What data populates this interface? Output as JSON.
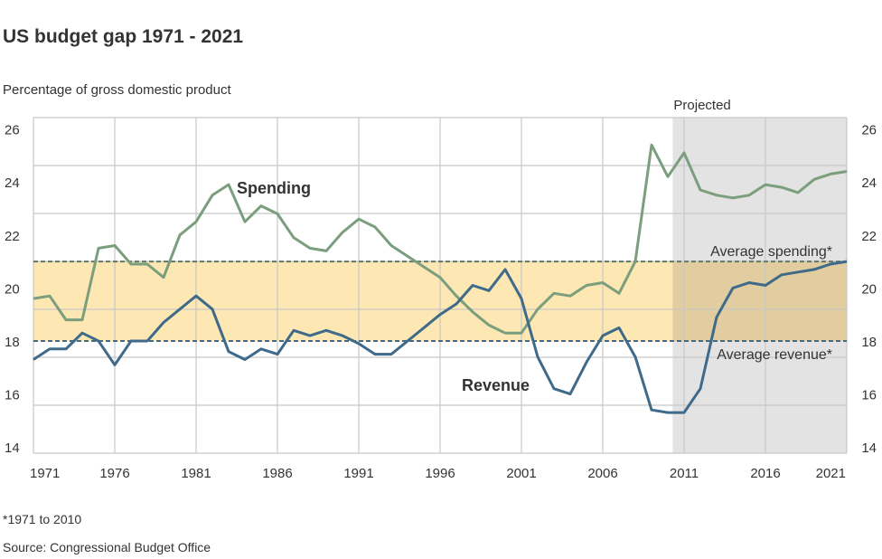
{
  "chart_data": {
    "type": "line",
    "title": "US budget gap 1971 - 2021",
    "ylabel": "Percentage of gross domestic product",
    "xlim": [
      1971,
      2021
    ],
    "ylim": [
      14,
      26
    ],
    "y_ticks": [
      26,
      24,
      22,
      20,
      18,
      16,
      14
    ],
    "x_ticks": [
      1971,
      1976,
      1981,
      1986,
      1991,
      1996,
      2001,
      2006,
      2011,
      2016,
      2021
    ],
    "grid": true,
    "projected": {
      "label": "Projected",
      "from_year": 2010.3,
      "color": "#e3e3e3"
    },
    "average_band": {
      "spending": {
        "label": "Average spending*",
        "value": 21.0
      },
      "revenue": {
        "label": "Average revenue*",
        "value": 18.0
      },
      "color": "#fde7b3"
    },
    "x": [
      1971,
      1972,
      1973,
      1974,
      1975,
      1976,
      1977,
      1978,
      1979,
      1980,
      1981,
      1982,
      1983,
      1984,
      1985,
      1986,
      1987,
      1988,
      1989,
      1990,
      1991,
      1992,
      1993,
      1994,
      1995,
      1996,
      1997,
      1998,
      1999,
      2000,
      2001,
      2002,
      2003,
      2004,
      2005,
      2006,
      2007,
      2008,
      2009,
      2010,
      2011,
      2012,
      2013,
      2014,
      2015,
      2016,
      2017,
      2018,
      2019,
      2020,
      2021
    ],
    "series": [
      {
        "name": "Spending",
        "color": "#7a9e7e",
        "values": [
          19.6,
          19.7,
          18.8,
          18.8,
          21.5,
          21.6,
          20.9,
          20.9,
          20.4,
          22.0,
          22.5,
          23.5,
          23.9,
          22.5,
          23.1,
          22.8,
          21.9,
          21.5,
          21.4,
          22.1,
          22.6,
          22.3,
          21.6,
          21.2,
          20.8,
          20.4,
          19.7,
          19.1,
          18.6,
          18.3,
          18.3,
          19.2,
          19.8,
          19.7,
          20.1,
          20.2,
          19.8,
          21.0,
          25.4,
          24.2,
          25.1,
          23.7,
          23.5,
          23.4,
          23.5,
          23.9,
          23.8,
          23.6,
          24.1,
          24.3,
          24.4
        ]
      },
      {
        "name": "Revenue",
        "color": "#3f6a8a",
        "values": [
          17.3,
          17.7,
          17.7,
          18.3,
          18.0,
          17.1,
          18.0,
          18.0,
          18.7,
          19.2,
          19.7,
          19.2,
          17.6,
          17.3,
          17.7,
          17.5,
          18.4,
          18.2,
          18.4,
          18.2,
          17.9,
          17.5,
          17.5,
          18.0,
          18.5,
          19.0,
          19.4,
          20.1,
          19.9,
          20.7,
          19.6,
          17.4,
          16.2,
          16.0,
          17.2,
          18.2,
          18.5,
          17.4,
          15.4,
          15.3,
          15.3,
          16.2,
          18.9,
          20.0,
          20.2,
          20.1,
          20.5,
          20.6,
          20.7,
          20.9,
          21.0
        ]
      }
    ],
    "footnote": "*1971 to 2010",
    "source": "Source: Congressional Budget Office"
  }
}
